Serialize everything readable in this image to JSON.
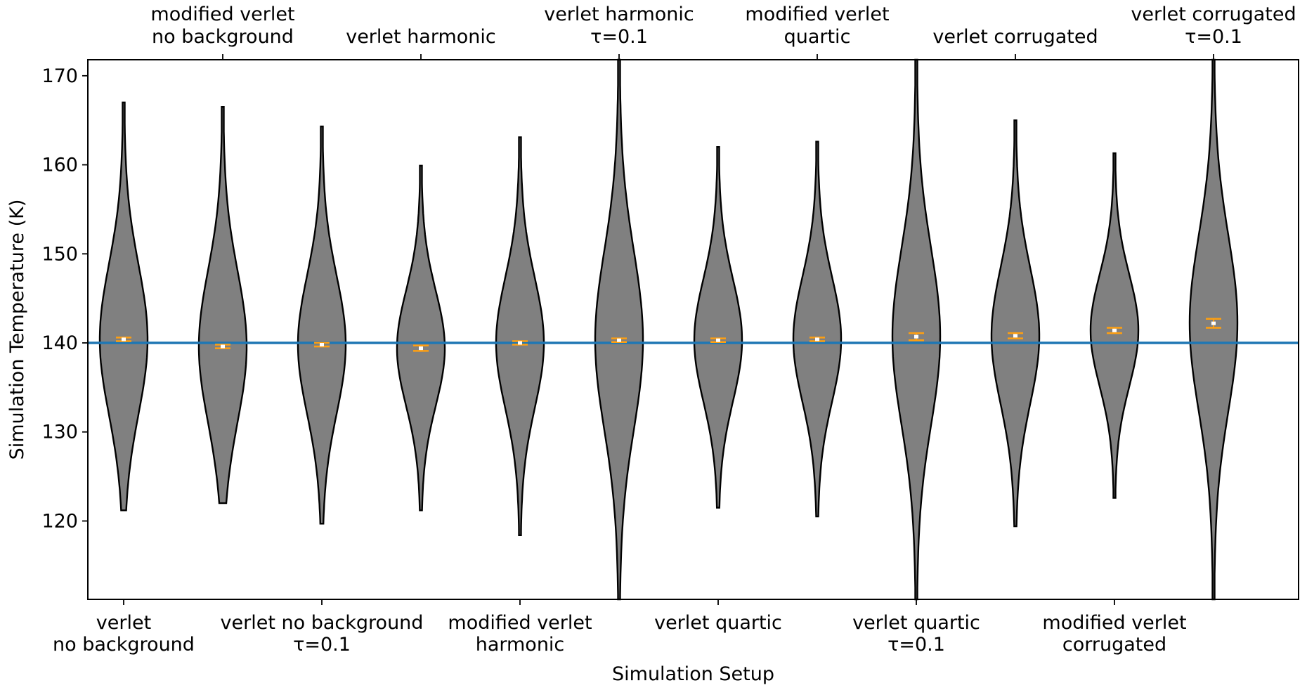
{
  "chart_data": {
    "type": "violin",
    "xlabel": "Simulation Setup",
    "ylabel": "Simulation Temperature (K)",
    "ylim": [
      111.2,
      171.8
    ],
    "yticks": [
      120,
      130,
      140,
      150,
      160,
      170
    ],
    "reference_line": 140,
    "colors": {
      "violin_fill": "#808080",
      "violin_edge": "#000000",
      "reference_line": "#1f77b4",
      "errorbar": "#ff9f10",
      "mean_marker": "#ffffff"
    },
    "categories": [
      {
        "label": [
          "verlet",
          "no background"
        ],
        "axis": "bottom",
        "min": 121.2,
        "max": 167.0,
        "mean": 140.4,
        "err": 0.2
      },
      {
        "label": [
          "modified verlet",
          "no background"
        ],
        "axis": "top",
        "min": 122.0,
        "max": 166.5,
        "mean": 139.6,
        "err": 0.2
      },
      {
        "label": [
          "verlet no background",
          "τ=0.1"
        ],
        "axis": "bottom",
        "min": 119.7,
        "max": 164.3,
        "mean": 139.8,
        "err": 0.2
      },
      {
        "label": [
          "verlet harmonic"
        ],
        "axis": "top",
        "min": 121.2,
        "max": 159.9,
        "mean": 139.4,
        "err": 0.3
      },
      {
        "label": [
          "modified verlet",
          "harmonic"
        ],
        "axis": "bottom",
        "min": 118.4,
        "max": 163.1,
        "mean": 140.0,
        "err": 0.2
      },
      {
        "label": [
          "verlet harmonic",
          "τ=0.1"
        ],
        "axis": "top",
        "min": 111.0,
        "max": 172.0,
        "mean": 140.3,
        "err": 0.2
      },
      {
        "label": [
          "verlet quartic"
        ],
        "axis": "bottom",
        "min": 121.5,
        "max": 162.0,
        "mean": 140.3,
        "err": 0.2
      },
      {
        "label": [
          "modified verlet",
          "quartic"
        ],
        "axis": "top",
        "min": 120.5,
        "max": 162.6,
        "mean": 140.4,
        "err": 0.2
      },
      {
        "label": [
          "verlet quartic",
          "τ=0.1"
        ],
        "axis": "bottom",
        "min": 111.0,
        "max": 172.0,
        "mean": 140.7,
        "err": 0.4
      },
      {
        "label": [
          "verlet corrugated"
        ],
        "axis": "top",
        "min": 119.4,
        "max": 165.0,
        "mean": 140.8,
        "err": 0.3
      },
      {
        "label": [
          "modified verlet",
          "corrugated"
        ],
        "axis": "bottom",
        "min": 122.6,
        "max": 161.3,
        "mean": 141.4,
        "err": 0.3
      },
      {
        "label": [
          "verlet corrugated",
          "τ=0.1"
        ],
        "axis": "top",
        "min": 111.0,
        "max": 172.0,
        "mean": 142.2,
        "err": 0.5
      }
    ]
  }
}
